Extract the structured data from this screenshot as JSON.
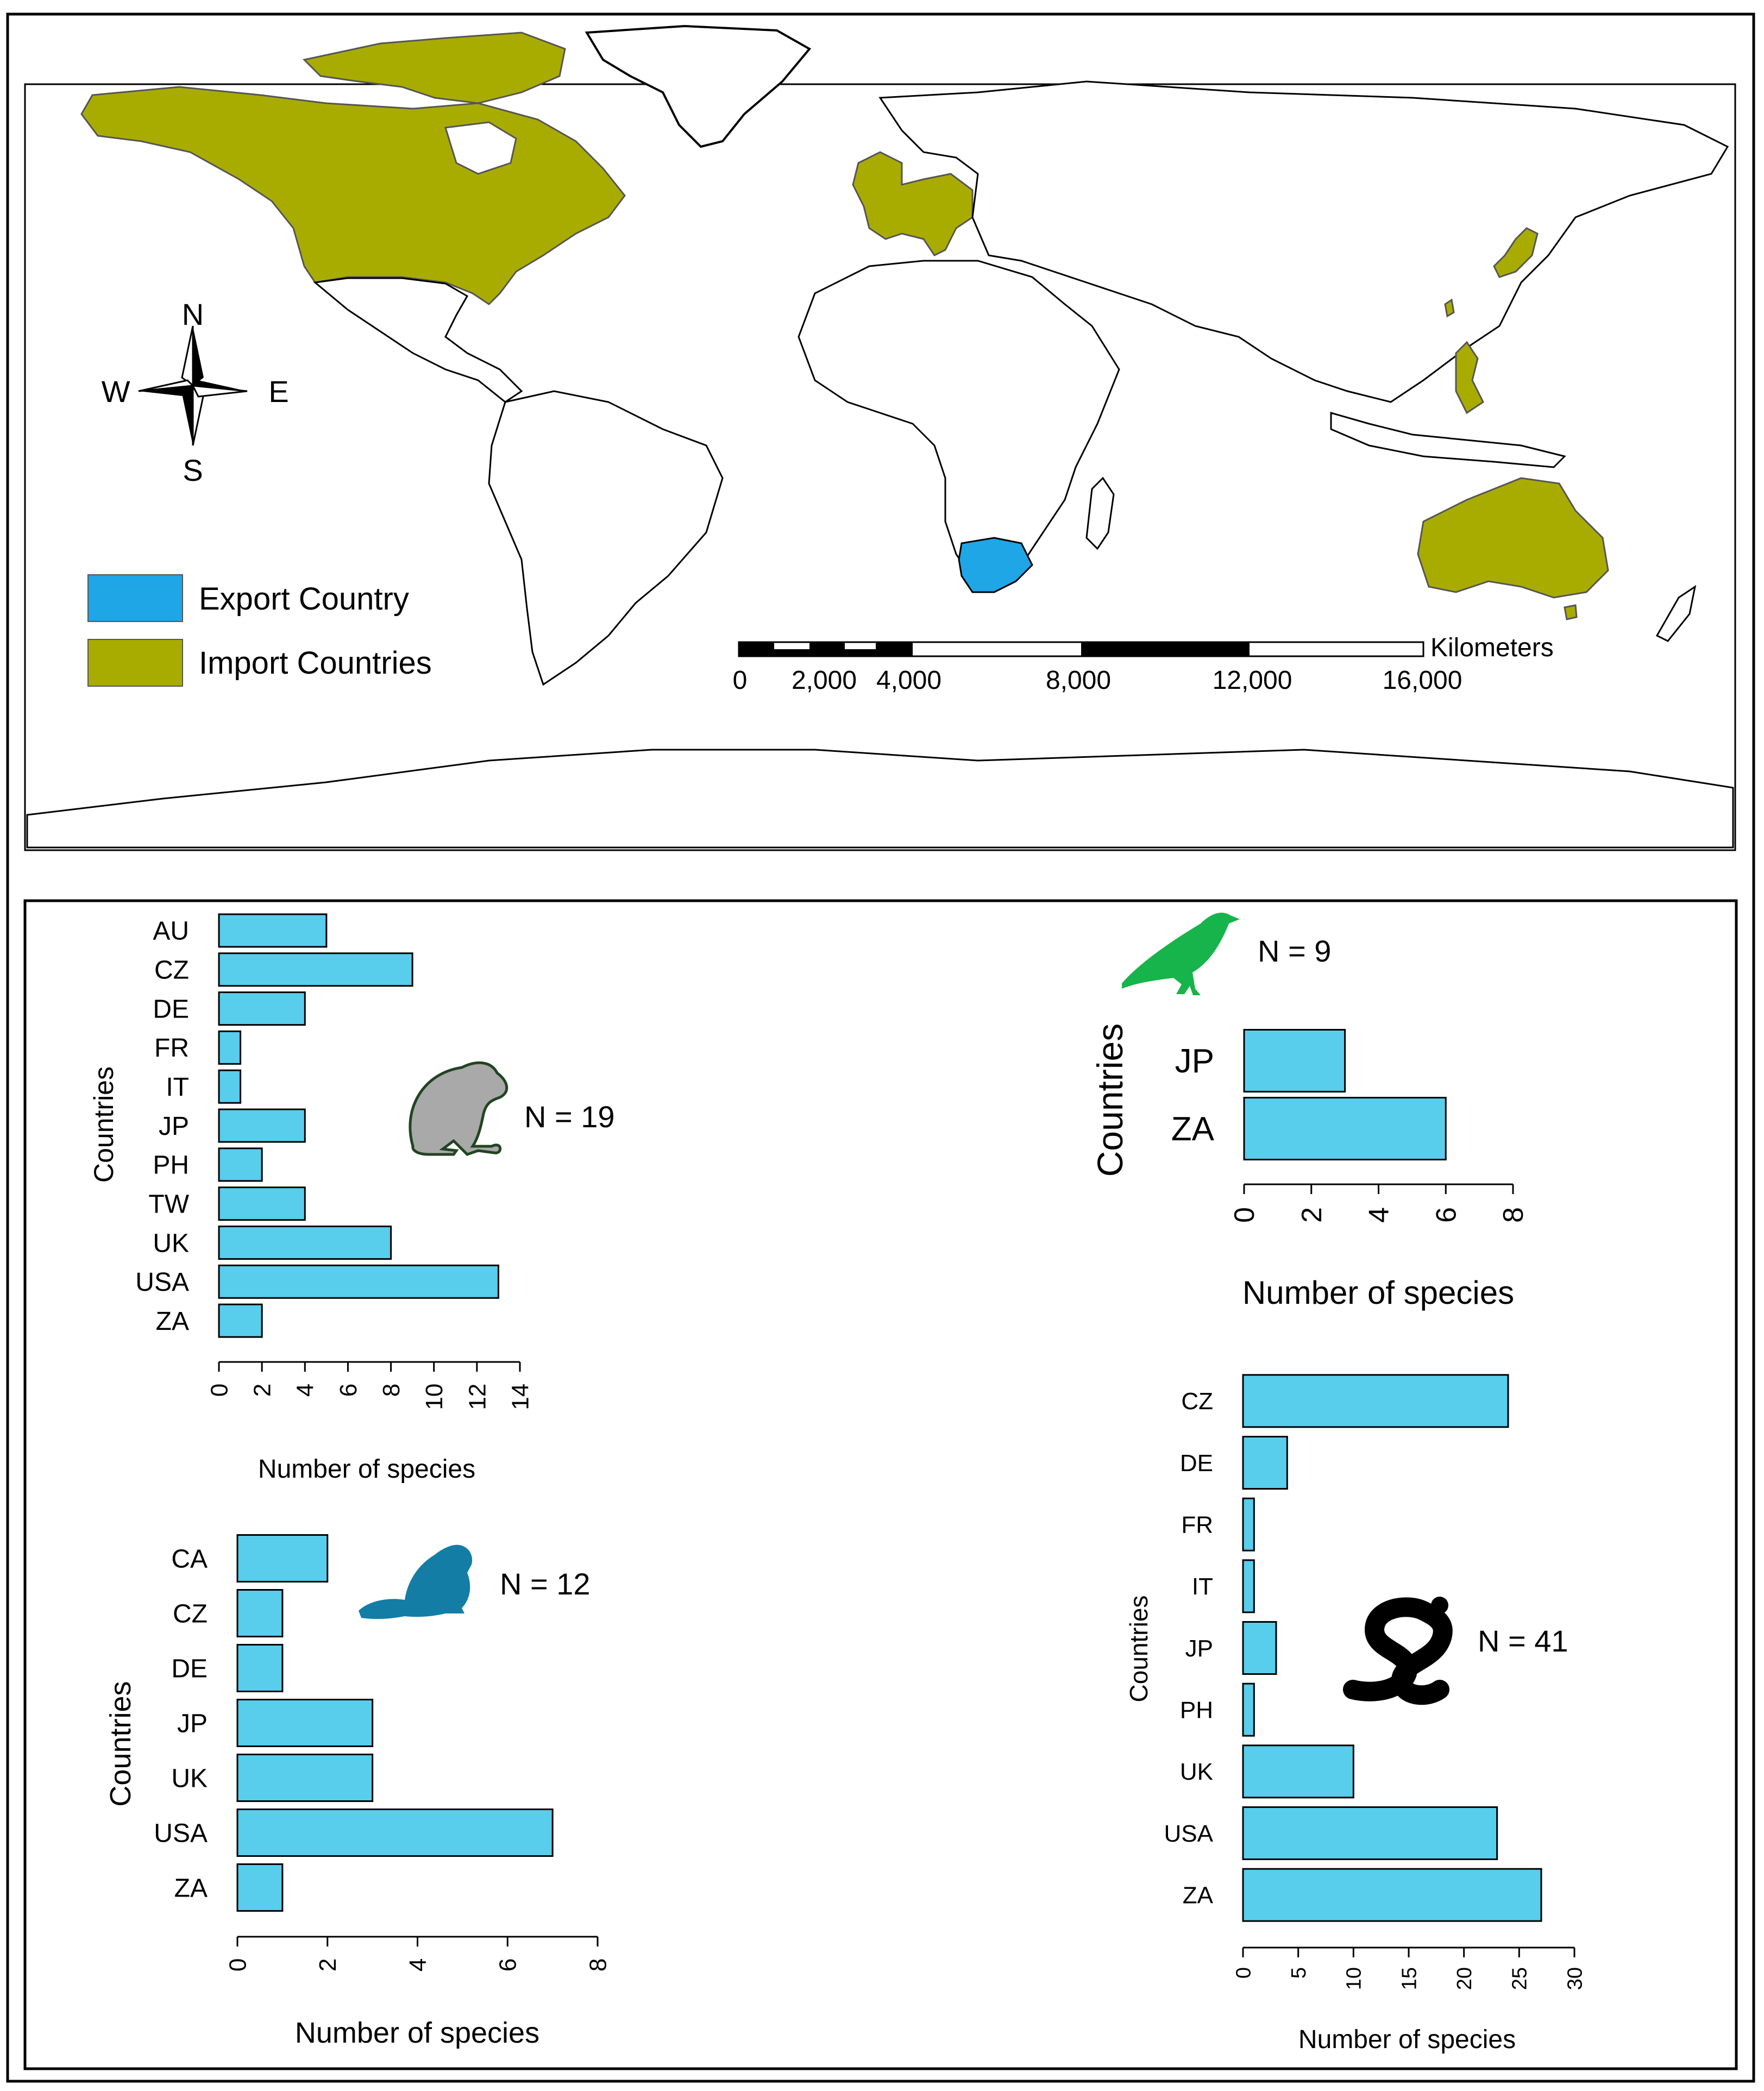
{
  "colors": {
    "export": "#1ea6e6",
    "import": "#a9ac00",
    "bar": "#58cdec",
    "frog": "#a9a9a9",
    "bird": "#16b44a",
    "beaver": "#137da6",
    "snake": "#000000"
  },
  "map": {
    "compass": {
      "n": "N",
      "s": "S",
      "e": "E",
      "w": "W"
    },
    "legend": [
      {
        "label": "Export Country",
        "color": "#1ea6e6"
      },
      {
        "label": "Import Countries",
        "color": "#a9ac00"
      }
    ],
    "scale": {
      "unit": "Kilometers",
      "labels": [
        "0",
        "2,000",
        "4,000",
        "8,000",
        "12,000",
        "16,000"
      ]
    }
  },
  "chart_data": [
    {
      "type": "bar",
      "orientation": "horizontal",
      "icon": "frog-icon",
      "annotation": "N = 19",
      "categories": [
        "AU",
        "CZ",
        "DE",
        "FR",
        "IT",
        "JP",
        "PH",
        "TW",
        "UK",
        "USA",
        "ZA"
      ],
      "values": [
        5,
        9,
        4,
        1,
        1,
        4,
        2,
        4,
        8,
        13,
        2
      ],
      "xlabel": "Number of species",
      "ylabel": "Countries",
      "xlim": [
        0,
        14
      ],
      "xticks": [
        "0",
        "2",
        "4",
        "6",
        "8",
        "10",
        "12",
        "14"
      ]
    },
    {
      "type": "bar",
      "orientation": "horizontal",
      "icon": "bird-icon",
      "annotation": "N = 9",
      "categories": [
        "JP",
        "ZA"
      ],
      "values": [
        3,
        6
      ],
      "xlabel": "Number of species",
      "ylabel": "Countries",
      "xlim": [
        0,
        8
      ],
      "xticks": [
        "0",
        "2",
        "4",
        "6",
        "8"
      ]
    },
    {
      "type": "bar",
      "orientation": "horizontal",
      "icon": "beaver-icon",
      "annotation": "N = 12",
      "categories": [
        "CA",
        "CZ",
        "DE",
        "JP",
        "UK",
        "USA",
        "ZA"
      ],
      "values": [
        2,
        1,
        1,
        3,
        3,
        7,
        1
      ],
      "xlabel": "Number of species",
      "ylabel": "Countries",
      "xlim": [
        0,
        8
      ],
      "xticks": [
        "0",
        "2",
        "4",
        "6",
        "8"
      ]
    },
    {
      "type": "bar",
      "orientation": "horizontal",
      "icon": "snake-icon",
      "annotation": "N = 41",
      "categories": [
        "CZ",
        "DE",
        "FR",
        "IT",
        "JP",
        "PH",
        "UK",
        "USA",
        "ZA"
      ],
      "values": [
        24,
        4,
        1,
        1,
        3,
        1,
        10,
        23,
        27
      ],
      "xlabel": "Number of species",
      "ylabel": "Countries",
      "xlim": [
        0,
        30
      ],
      "xticks": [
        "0",
        "5",
        "10",
        "15",
        "20",
        "25",
        "30"
      ]
    }
  ]
}
